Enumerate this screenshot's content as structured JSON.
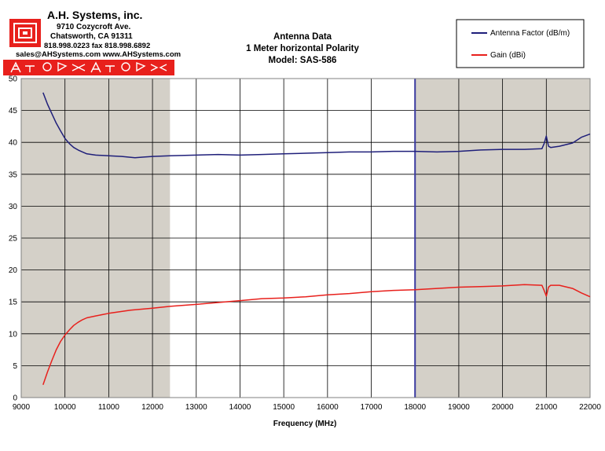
{
  "company": {
    "name": "A.H. Systems, inc.",
    "address1": "9710 Cozycroft Ave.",
    "address2": "Chatsworth, CA 91311",
    "phone": "818.998.0223 fax 818.998.6892",
    "web": "sales@AHSystems.com www.AHSystems.com"
  },
  "colors": {
    "antenna_factor": "#1f1f7a",
    "gain": "#e8201c",
    "shade": "#d4d0c8",
    "vline": "#3a3aa0",
    "logo_red": "#e8201c"
  },
  "chart_data": {
    "type": "line",
    "title_lines": [
      "Antenna Data",
      "1 Meter horizontal Polarity",
      "Model: SAS-586"
    ],
    "xlabel": "Frequency (MHz)",
    "ylabel": "",
    "xlim": [
      9000,
      22000
    ],
    "ylim": [
      0,
      50
    ],
    "x_ticks": [
      9000,
      10000,
      11000,
      12000,
      13000,
      14000,
      15000,
      16000,
      17000,
      18000,
      19000,
      20000,
      21000,
      22000
    ],
    "y_ticks": [
      0,
      5,
      10,
      15,
      20,
      25,
      30,
      35,
      40,
      45,
      50
    ],
    "grid": true,
    "legend_position": "top-right",
    "shaded_regions": [
      [
        9000,
        12400
      ],
      [
        18000,
        22000
      ]
    ],
    "marker_lines": [
      18000
    ],
    "series": [
      {
        "name": "Antenna Factor (dB/m)",
        "color": "#1f1f7a",
        "x": [
          9500,
          9600,
          9700,
          9800,
          9900,
          10000,
          10100,
          10200,
          10300,
          10400,
          10500,
          10700,
          11000,
          11300,
          11600,
          11800,
          12000,
          12400,
          13000,
          13500,
          14000,
          14500,
          15000,
          15500,
          16000,
          16500,
          17000,
          17500,
          18000,
          18500,
          19000,
          19500,
          20000,
          20500,
          20900,
          20950,
          21000,
          21050,
          21100,
          21300,
          21600,
          21800,
          22000
        ],
        "values": [
          47.8,
          46.0,
          44.5,
          43.0,
          41.8,
          40.6,
          39.8,
          39.2,
          38.8,
          38.5,
          38.2,
          38.0,
          37.9,
          37.8,
          37.6,
          37.7,
          37.8,
          37.9,
          38.0,
          38.1,
          38.0,
          38.1,
          38.2,
          38.3,
          38.4,
          38.5,
          38.5,
          38.6,
          38.6,
          38.5,
          38.6,
          38.8,
          38.9,
          38.9,
          39.0,
          39.8,
          41.0,
          39.4,
          39.2,
          39.4,
          39.9,
          40.8,
          41.3
        ]
      },
      {
        "name": "Gain (dBi)",
        "color": "#e8201c",
        "x": [
          9500,
          9600,
          9700,
          9800,
          9900,
          10000,
          10100,
          10200,
          10300,
          10400,
          10500,
          10700,
          11000,
          11500,
          12000,
          12400,
          13000,
          13500,
          14000,
          14500,
          15000,
          15500,
          16000,
          16500,
          17000,
          17500,
          18000,
          18500,
          19000,
          19500,
          20000,
          20500,
          20900,
          20950,
          21000,
          21050,
          21100,
          21300,
          21600,
          21800,
          22000
        ],
        "values": [
          2.0,
          4.0,
          5.8,
          7.5,
          8.8,
          9.8,
          10.6,
          11.3,
          11.8,
          12.2,
          12.5,
          12.8,
          13.2,
          13.7,
          14.0,
          14.3,
          14.6,
          14.9,
          15.2,
          15.5,
          15.6,
          15.8,
          16.1,
          16.3,
          16.6,
          16.8,
          16.9,
          17.1,
          17.3,
          17.4,
          17.5,
          17.7,
          17.6,
          16.8,
          15.9,
          17.3,
          17.6,
          17.6,
          17.1,
          16.4,
          15.8
        ]
      }
    ]
  }
}
